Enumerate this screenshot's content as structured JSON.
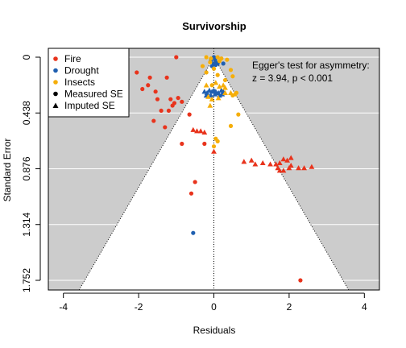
{
  "chart_data": {
    "type": "scatter",
    "title": "Survivorship",
    "xlabel": "Residuals",
    "ylabel": "Standard Error",
    "xlim": [
      -4.4,
      4.4
    ],
    "ylim": [
      1.752,
      0
    ],
    "y_reversed": true,
    "x_ticks": [
      -4,
      -2,
      0,
      2,
      4
    ],
    "x_tick_labels": [
      "-4",
      "-2",
      "0",
      "2",
      "4"
    ],
    "y_ticks": [
      0,
      0.438,
      0.876,
      1.314,
      1.752
    ],
    "y_tick_labels": [
      "0",
      "0.438",
      "0.876",
      "1.314",
      "1.752"
    ],
    "funnel_slope": 1.96,
    "background_color": "#cccccc",
    "funnel_color": "#ffffff",
    "grid": "horizontal",
    "legend_position": "top-left",
    "legend": [
      {
        "label": "Fire",
        "color": "#e8331c",
        "marker": "circle"
      },
      {
        "label": "Drought",
        "color": "#1f5fb0",
        "marker": "circle"
      },
      {
        "label": "Insects",
        "color": "#f5ae0a",
        "marker": "circle"
      },
      {
        "label": "Measured SE",
        "color": "#000000",
        "marker": "circle"
      },
      {
        "label": "Imputed SE",
        "color": "#000000",
        "marker": "triangle"
      }
    ],
    "annotation": [
      "Egger's test for asymmetry:",
      "z = 3.94, p < 0.001"
    ],
    "colors": {
      "Fire": "#e8331c",
      "Drought": "#1f5fb0",
      "Insects": "#f5ae0a"
    },
    "series": [
      {
        "name": "Fire",
        "marker": "circle",
        "points": [
          [
            -1.0,
            0.0
          ],
          [
            -2.05,
            0.12
          ],
          [
            -1.7,
            0.16
          ],
          [
            -1.75,
            0.22
          ],
          [
            -1.25,
            0.16
          ],
          [
            -1.9,
            0.25
          ],
          [
            -1.55,
            0.27
          ],
          [
            -1.5,
            0.33
          ],
          [
            -1.15,
            0.33
          ],
          [
            -1.05,
            0.36
          ],
          [
            -0.95,
            0.32
          ],
          [
            -0.85,
            0.35
          ],
          [
            -1.4,
            0.42
          ],
          [
            -1.2,
            0.42
          ],
          [
            -1.1,
            0.38
          ],
          [
            -0.65,
            0.45
          ],
          [
            -1.3,
            0.55
          ],
          [
            -1.6,
            0.5
          ],
          [
            -0.85,
            0.68
          ],
          [
            -0.25,
            0.68
          ],
          [
            -0.5,
            0.98
          ],
          [
            -0.6,
            1.07
          ],
          [
            2.3,
            1.752
          ]
        ]
      },
      {
        "name": "Fire",
        "marker": "triangle",
        "points": [
          [
            -0.55,
            0.57
          ],
          [
            -0.45,
            0.58
          ],
          [
            -0.35,
            0.58
          ],
          [
            -0.25,
            0.59
          ],
          [
            0.0,
            0.74
          ],
          [
            0.8,
            0.82
          ],
          [
            1.0,
            0.81
          ],
          [
            1.1,
            0.84
          ],
          [
            1.3,
            0.83
          ],
          [
            1.5,
            0.84
          ],
          [
            1.65,
            0.84
          ],
          [
            1.75,
            0.83
          ],
          [
            1.85,
            0.8
          ],
          [
            1.95,
            0.81
          ],
          [
            2.05,
            0.79
          ],
          [
            1.7,
            0.87
          ],
          [
            1.75,
            0.89
          ],
          [
            1.85,
            0.89
          ],
          [
            2.0,
            0.87
          ],
          [
            2.25,
            0.87
          ],
          [
            2.4,
            0.87
          ],
          [
            2.6,
            0.86
          ],
          [
            2.05,
            0.85
          ]
        ]
      },
      {
        "name": "Drought",
        "marker": "circle",
        "points": [
          [
            0.0,
            0.0
          ],
          [
            0.03,
            0.02
          ],
          [
            0.05,
            0.04
          ],
          [
            0.0,
            0.05
          ],
          [
            -0.05,
            0.07
          ],
          [
            -0.08,
            0.03
          ],
          [
            0.1,
            0.05
          ],
          [
            0.25,
            0.05
          ],
          [
            0.05,
            0.06
          ],
          [
            -0.55,
            1.38
          ]
        ]
      },
      {
        "name": "Drought",
        "marker": "triangle",
        "points": [
          [
            -0.25,
            0.27
          ],
          [
            -0.18,
            0.28
          ],
          [
            -0.12,
            0.26
          ],
          [
            -0.05,
            0.27
          ],
          [
            0.0,
            0.26
          ],
          [
            0.05,
            0.27
          ],
          [
            0.12,
            0.28
          ],
          [
            0.2,
            0.26
          ],
          [
            0.25,
            0.27
          ],
          [
            -0.2,
            0.3
          ],
          [
            -0.08,
            0.3
          ],
          [
            0.03,
            0.29
          ],
          [
            0.15,
            0.3
          ],
          [
            0.22,
            0.29
          ]
        ]
      },
      {
        "name": "Insects",
        "marker": "circle",
        "points": [
          [
            -0.2,
            0.0
          ],
          [
            -0.08,
            0.01
          ],
          [
            0.1,
            0.0
          ],
          [
            0.2,
            0.01
          ],
          [
            0.35,
            0.02
          ],
          [
            0.15,
            0.03
          ],
          [
            -0.1,
            0.04
          ],
          [
            -0.3,
            0.07
          ],
          [
            0.0,
            0.09
          ],
          [
            0.45,
            0.1
          ],
          [
            -0.2,
            0.12
          ],
          [
            0.1,
            0.14
          ],
          [
            0.5,
            0.15
          ],
          [
            0.3,
            0.18
          ],
          [
            -0.05,
            0.22
          ],
          [
            0.6,
            0.28
          ],
          [
            0.5,
            0.3
          ],
          [
            0.65,
            0.45
          ],
          [
            0.45,
            0.54
          ],
          [
            0.05,
            0.64
          ],
          [
            0.1,
            0.66
          ],
          [
            0.0,
            0.7
          ]
        ]
      },
      {
        "name": "Insects",
        "marker": "triangle",
        "points": [
          [
            -0.2,
            0.22
          ],
          [
            0.05,
            0.2
          ],
          [
            0.15,
            0.23
          ],
          [
            0.25,
            0.22
          ],
          [
            0.3,
            0.24
          ],
          [
            -0.15,
            0.31
          ],
          [
            -0.05,
            0.33
          ],
          [
            0.12,
            0.32
          ],
          [
            0.45,
            0.28
          ],
          [
            0.55,
            0.29
          ],
          [
            0.3,
            0.28
          ],
          [
            -0.1,
            0.38
          ]
        ]
      }
    ]
  }
}
